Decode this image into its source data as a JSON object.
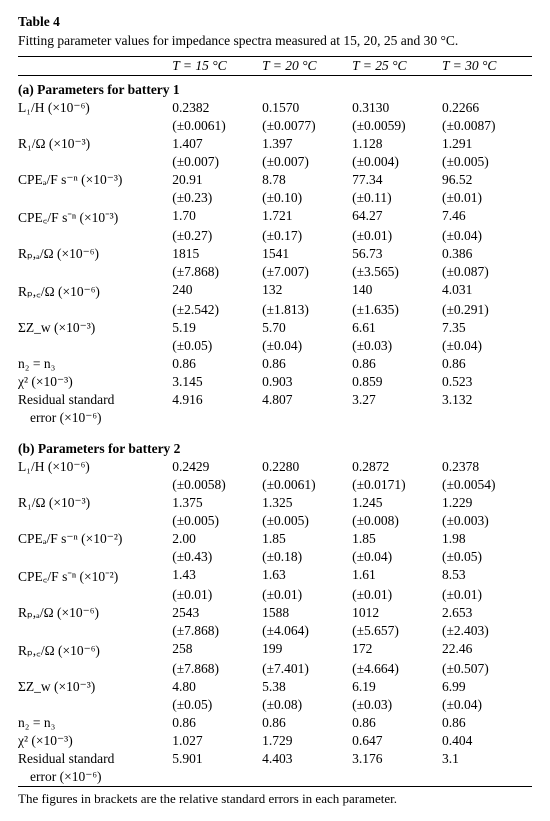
{
  "table_label": "Table 4",
  "caption": "Fitting parameter values for impedance spectra measured at 15, 20, 25 and 30 °C.",
  "columns": [
    "T = 15 °C",
    "T = 20 °C",
    "T = 25 °C",
    "T = 30 °C"
  ],
  "sectionA": {
    "title": "(a) Parameters for battery 1",
    "rows": [
      {
        "param": "L₁/H (×10⁻⁶)",
        "vals": [
          "0.2382",
          "0.1570",
          "0.3130",
          "0.2266"
        ],
        "errs": [
          "(±0.0061)",
          "(±0.0077)",
          "(±0.0059)",
          "(±0.0087)"
        ]
      },
      {
        "param": "R₁/Ω (×10⁻³)",
        "vals": [
          "1.407",
          "1.397",
          "1.128",
          "1.291"
        ],
        "errs": [
          "(±0.007)",
          "(±0.007)",
          "(±0.004)",
          "(±0.005)"
        ]
      },
      {
        "param": "CPEₐ/F s⁻ⁿ (×10⁻³)",
        "vals": [
          "20.91",
          "8.78",
          "77.34",
          "96.52"
        ],
        "errs": [
          "(±0.23)",
          "(±0.10)",
          "(±0.11)",
          "(±0.01)"
        ]
      },
      {
        "param": "CPE꜀/F s⁻ⁿ (×10⁻³)",
        "vals": [
          "1.70",
          "1.721",
          "64.27",
          "7.46"
        ],
        "errs": [
          "(±0.27)",
          "(±0.17)",
          "(±0.01)",
          "(±0.04)"
        ]
      },
      {
        "param": "Rₚ,ₐ/Ω (×10⁻⁶)",
        "vals": [
          "1815",
          "1541",
          "56.73",
          "0.386"
        ],
        "errs": [
          "(±7.868)",
          "(±7.007)",
          "(±3.565)",
          "(±0.087)"
        ]
      },
      {
        "param": "Rₚ,꜀/Ω (×10⁻⁶)",
        "vals": [
          "240",
          "132",
          "140",
          "4.031"
        ],
        "errs": [
          "(±2.542)",
          "(±1.813)",
          "(±1.635)",
          "(±0.291)"
        ]
      },
      {
        "param": "ΣZ_w (×10⁻³)",
        "vals": [
          "5.19",
          "5.70",
          "6.61",
          "7.35"
        ],
        "errs": [
          "(±0.05)",
          "(±0.04)",
          "(±0.03)",
          "(±0.04)"
        ]
      },
      {
        "param": "n₂ = n₃",
        "vals": [
          "0.86",
          "0.86",
          "0.86",
          "0.86"
        ]
      },
      {
        "param": "χ² (×10⁻³)",
        "vals": [
          "3.145",
          "0.903",
          "0.859",
          "0.523"
        ]
      },
      {
        "param": "Residual standard",
        "param2": "error (×10⁻⁶)",
        "vals": [
          "4.916",
          "4.807",
          "3.27",
          "3.132"
        ]
      }
    ]
  },
  "sectionB": {
    "title": "(b) Parameters for battery 2",
    "rows": [
      {
        "param": "L₁/H (×10⁻⁶)",
        "vals": [
          "0.2429",
          "0.2280",
          "0.2872",
          "0.2378"
        ],
        "errs": [
          "(±0.0058)",
          "(±0.0061)",
          "(±0.0171)",
          "(±0.0054)"
        ]
      },
      {
        "param": "R₁/Ω (×10⁻³)",
        "vals": [
          "1.375",
          "1.325",
          "1.245",
          "1.229"
        ],
        "errs": [
          "(±0.005)",
          "(±0.005)",
          "(±0.008)",
          "(±0.003)"
        ]
      },
      {
        "param": "CPEₐ/F s⁻ⁿ (×10⁻²)",
        "vals": [
          "2.00",
          "1.85",
          "1.85",
          "1.98"
        ],
        "errs": [
          "(±0.43)",
          "(±0.18)",
          "(±0.04)",
          "(±0.05)"
        ]
      },
      {
        "param": "CPE꜀/F s⁻ⁿ (×10⁻²)",
        "vals": [
          "1.43",
          "1.63",
          "1.61",
          "8.53"
        ],
        "errs": [
          "(±0.01)",
          "(±0.01)",
          "(±0.01)",
          "(±0.01)"
        ]
      },
      {
        "param": "Rₚ,ₐ/Ω (×10⁻⁶)",
        "vals": [
          "2543",
          "1588",
          "1012",
          "2.653"
        ],
        "errs": [
          "(±7.868)",
          "(±4.064)",
          "(±5.657)",
          "(±2.403)"
        ]
      },
      {
        "param": "Rₚ,꜀/Ω (×10⁻⁶)",
        "vals": [
          "258",
          "199",
          "172",
          "22.46"
        ],
        "errs": [
          "(±7.868)",
          "(±7.401)",
          "(±4.664)",
          "(±0.507)"
        ]
      },
      {
        "param": "ΣZ_w (×10⁻³)",
        "vals": [
          "4.80",
          "5.38",
          "6.19",
          "6.99"
        ],
        "errs": [
          "(±0.05)",
          "(±0.08)",
          "(±0.03)",
          "(±0.04)"
        ]
      },
      {
        "param": "n₂ = n₃",
        "vals": [
          "0.86",
          "0.86",
          "0.86",
          "0.86"
        ]
      },
      {
        "param": "χ² (×10⁻³)",
        "vals": [
          "1.027",
          "1.729",
          "0.647",
          "0.404"
        ]
      },
      {
        "param": "Residual standard",
        "param2": "error (×10⁻⁶)",
        "vals": [
          "5.901",
          "4.403",
          "3.176",
          "3.1"
        ]
      }
    ]
  },
  "footnote": "The figures in brackets are the relative standard errors in each parameter."
}
